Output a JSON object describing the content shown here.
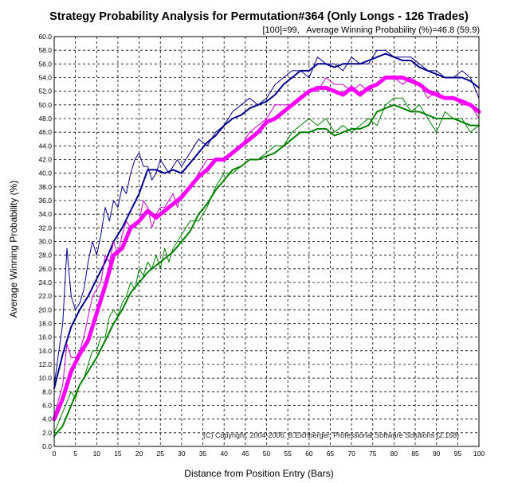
{
  "chart_data": {
    "type": "line",
    "title": "Strategy Probability Analysis for Permutation#364 (Only Longs - 126 Trades)",
    "subtitle": "[100]=99,   Average Winning Probability (%)=46.8 (59.9)",
    "xlabel": "Distance from Position Entry (Bars)",
    "ylabel": "Average Winning Probability (%)",
    "copyright": "(C) Copyright, 2004-2006, B.Eichberger, Professional Software Solutions (2.168)",
    "xlim": [
      0,
      100
    ],
    "ylim": [
      0,
      60
    ],
    "x_ticks": [
      "0",
      "5",
      "10",
      "15",
      "20",
      "25",
      "30",
      "35",
      "40",
      "45",
      "50",
      "55",
      "60",
      "65",
      "70",
      "75",
      "80",
      "85",
      "90",
      "95",
      "100"
    ],
    "y_ticks": [
      "0.0",
      "2.0",
      "4.0",
      "6.0",
      "8.0",
      "10.0",
      "12.0",
      "14.0",
      "16.0",
      "18.0",
      "20.0",
      "22.0",
      "24.0",
      "26.0",
      "28.0",
      "30.0",
      "32.0",
      "34.0",
      "36.0",
      "38.0",
      "40.0",
      "42.0",
      "44.0",
      "46.0",
      "48.0",
      "50.0",
      "52.0",
      "54.0",
      "56.0",
      "58.0",
      "60.0"
    ],
    "grid": true,
    "colors": {
      "upper": "#00008b",
      "average": "#ff00ff",
      "lower": "#008000",
      "grid": "#000000"
    },
    "series": [
      {
        "role": "upper-smooth",
        "color": "#00008b",
        "width": 2,
        "x": [
          0,
          2,
          4,
          6,
          8,
          10,
          12,
          14,
          16,
          18,
          20,
          22,
          24,
          26,
          28,
          30,
          32,
          34,
          36,
          38,
          40,
          42,
          44,
          46,
          48,
          50,
          52,
          54,
          56,
          58,
          60,
          62,
          64,
          66,
          68,
          70,
          72,
          74,
          76,
          78,
          80,
          82,
          84,
          86,
          88,
          90,
          92,
          94,
          96,
          98,
          100
        ],
        "y": [
          8.5,
          13.5,
          17.5,
          20,
          22,
          24.5,
          27,
          30,
          32,
          34.5,
          37,
          40.5,
          40.5,
          40,
          40.5,
          40,
          41.5,
          43,
          44.5,
          45.5,
          47,
          48,
          48.5,
          49.5,
          50,
          50.5,
          51.5,
          53,
          54,
          55,
          55,
          56,
          56,
          55.5,
          56,
          56,
          56,
          56.5,
          57,
          57.5,
          57,
          56.5,
          56.5,
          55.5,
          55,
          54.5,
          54,
          54,
          54,
          53.5,
          52.5
        ]
      },
      {
        "role": "upper-raw",
        "color": "#00008b",
        "width": 1,
        "x": [
          0,
          2,
          3,
          4,
          5,
          6,
          7,
          8,
          9,
          10,
          11,
          12,
          13,
          14,
          15,
          16,
          17,
          18,
          19,
          20,
          21,
          22,
          23,
          24,
          25,
          26,
          27,
          28,
          29,
          30,
          32,
          34,
          36,
          38,
          40,
          42,
          44,
          46,
          48,
          50,
          52,
          54,
          56,
          58,
          60,
          62,
          64,
          66,
          68,
          70,
          72,
          74,
          76,
          78,
          80,
          82,
          84,
          86,
          88,
          90,
          92,
          94,
          96,
          98,
          100
        ],
        "y": [
          9,
          18,
          29,
          22,
          20,
          21,
          23,
          27,
          30,
          28,
          31,
          35,
          33,
          36,
          35,
          38,
          37,
          40,
          42,
          43,
          41,
          41,
          39,
          40,
          42,
          41,
          40,
          41,
          42,
          41,
          43,
          45,
          44,
          46,
          47,
          49,
          50,
          51,
          50,
          51,
          53,
          54,
          55,
          55,
          54,
          57,
          56,
          56,
          55,
          57,
          56,
          56,
          58,
          58,
          57,
          57,
          57,
          56,
          55,
          55,
          54,
          54,
          55,
          54,
          51
        ]
      },
      {
        "role": "average-raw",
        "color": "#cc00cc",
        "width": 1,
        "x": [
          0,
          2,
          3,
          4,
          5,
          6,
          7,
          8,
          9,
          10,
          11,
          12,
          13,
          14,
          15,
          16,
          17,
          18,
          19,
          20,
          21,
          22,
          23,
          24,
          25,
          26,
          27,
          28,
          29,
          30,
          32,
          34,
          36,
          38,
          40,
          42,
          44,
          46,
          48,
          50,
          52,
          54,
          56,
          58,
          60,
          62,
          64,
          66,
          68,
          70,
          72,
          74,
          76,
          78,
          80,
          82,
          84,
          86,
          88,
          90,
          92,
          94,
          96,
          98,
          100
        ],
        "y": [
          4.5,
          9,
          15,
          13,
          13,
          14,
          16,
          19,
          22,
          23,
          24,
          28,
          27,
          30,
          28,
          31,
          33,
          32,
          32,
          33,
          36,
          35,
          32,
          34,
          35,
          35,
          36,
          37,
          35,
          37,
          38,
          40,
          42,
          42,
          42,
          43,
          44,
          46,
          47,
          48,
          50,
          50,
          50,
          51,
          52,
          52,
          54,
          53,
          53,
          52,
          53,
          52,
          53,
          54,
          54,
          53,
          54,
          53,
          51,
          52,
          51,
          51,
          50,
          50,
          48
        ]
      },
      {
        "role": "average-smooth",
        "color": "#ff00ff",
        "width": 5,
        "x": [
          0,
          2,
          4,
          6,
          8,
          10,
          12,
          14,
          16,
          18,
          20,
          22,
          24,
          26,
          28,
          30,
          32,
          34,
          36,
          38,
          40,
          42,
          44,
          46,
          48,
          50,
          52,
          54,
          56,
          58,
          60,
          62,
          64,
          66,
          68,
          70,
          72,
          74,
          76,
          78,
          80,
          82,
          84,
          86,
          88,
          90,
          92,
          94,
          96,
          98,
          100
        ],
        "y": [
          4,
          7,
          11,
          13.5,
          15.5,
          19.5,
          23.5,
          28,
          29,
          32,
          33,
          34.5,
          33.5,
          34.5,
          35.5,
          36.5,
          38,
          39.5,
          40.5,
          42,
          42,
          43,
          44,
          45,
          46,
          47.5,
          48,
          49,
          50,
          51,
          52,
          52.5,
          52.5,
          52,
          51.5,
          52.5,
          51.5,
          52.5,
          53,
          54,
          54,
          54,
          53.5,
          53,
          52,
          51.5,
          51,
          51,
          50.5,
          50,
          49
        ]
      },
      {
        "role": "lower-raw",
        "color": "#008000",
        "width": 1,
        "x": [
          0,
          2,
          4,
          5,
          6,
          7,
          8,
          9,
          10,
          11,
          12,
          13,
          14,
          15,
          16,
          17,
          18,
          19,
          20,
          21,
          22,
          23,
          24,
          25,
          26,
          27,
          28,
          29,
          30,
          32,
          34,
          36,
          38,
          40,
          42,
          44,
          46,
          48,
          50,
          52,
          54,
          56,
          58,
          60,
          62,
          64,
          66,
          68,
          70,
          72,
          74,
          76,
          78,
          80,
          82,
          84,
          86,
          88,
          90,
          92,
          94,
          96,
          98,
          100
        ],
        "y": [
          2,
          5,
          8,
          7,
          9,
          10,
          12,
          14,
          14,
          16,
          16,
          19,
          20,
          19,
          21,
          22,
          24,
          23,
          26,
          25,
          27,
          26,
          28,
          26,
          29,
          27,
          29,
          30,
          31,
          33,
          33,
          35,
          38,
          40,
          40,
          41,
          42,
          42,
          43,
          44,
          44,
          46,
          47,
          48,
          47,
          48,
          46,
          47,
          46,
          47,
          48,
          47,
          50,
          51,
          51,
          49,
          50,
          48,
          46,
          49,
          48,
          48,
          46,
          47
        ]
      },
      {
        "role": "lower-smooth",
        "color": "#008000",
        "width": 2,
        "x": [
          0,
          2,
          4,
          6,
          8,
          10,
          12,
          14,
          16,
          18,
          20,
          22,
          24,
          26,
          28,
          30,
          32,
          34,
          36,
          38,
          40,
          42,
          44,
          46,
          48,
          50,
          52,
          54,
          56,
          58,
          60,
          62,
          64,
          66,
          68,
          70,
          72,
          74,
          76,
          78,
          80,
          82,
          84,
          86,
          88,
          90,
          92,
          94,
          96,
          98,
          100
        ],
        "y": [
          1.5,
          3,
          6,
          9,
          11,
          13,
          15.5,
          18,
          20,
          22.5,
          24,
          25.5,
          26.5,
          27.5,
          28.5,
          30,
          31.5,
          34,
          35.5,
          37.5,
          39,
          40.5,
          41,
          42,
          42,
          42.5,
          43,
          44,
          45,
          46,
          46,
          46.5,
          46.5,
          45.5,
          46,
          46.5,
          46.5,
          47,
          49,
          49.5,
          50,
          49.5,
          49,
          49,
          48.5,
          48,
          48,
          48,
          47.5,
          47,
          47
        ]
      }
    ]
  }
}
